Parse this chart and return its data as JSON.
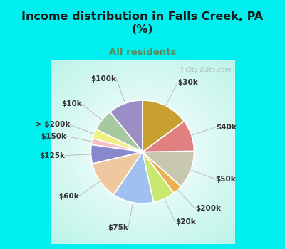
{
  "title": "Income distribution in Falls Creek, PA\n(%)",
  "subtitle": "All residents",
  "title_color": "#1a1a1a",
  "subtitle_color": "#5a8a5a",
  "bg_cyan": "#00f0f0",
  "watermark": "City-Data.com",
  "slices": [
    {
      "label": "$100k",
      "value": 11,
      "color": "#9b8ec4"
    },
    {
      "label": "$10k",
      "value": 7,
      "color": "#a8c8a0"
    },
    {
      "label": "> $200k",
      "value": 3,
      "color": "#f0f080"
    },
    {
      "label": "$150k",
      "value": 2,
      "color": "#f5c0c0"
    },
    {
      "label": "$125k",
      "value": 6,
      "color": "#8888cc"
    },
    {
      "label": "$60k",
      "value": 12,
      "color": "#f0c8a0"
    },
    {
      "label": "$75k",
      "value": 13,
      "color": "#a0c0f0"
    },
    {
      "label": "$20k",
      "value": 7,
      "color": "#c8e870"
    },
    {
      "label": "$200k",
      "value": 3,
      "color": "#e8b050"
    },
    {
      "label": "$50k",
      "value": 12,
      "color": "#c8c8b0"
    },
    {
      "label": "$40k",
      "value": 10,
      "color": "#e08080"
    },
    {
      "label": "$30k",
      "value": 15,
      "color": "#c8a030"
    }
  ],
  "label_fontsize": 7.5,
  "label_color": "#333333",
  "figsize": [
    4.0,
    3.5
  ],
  "dpi": 100
}
